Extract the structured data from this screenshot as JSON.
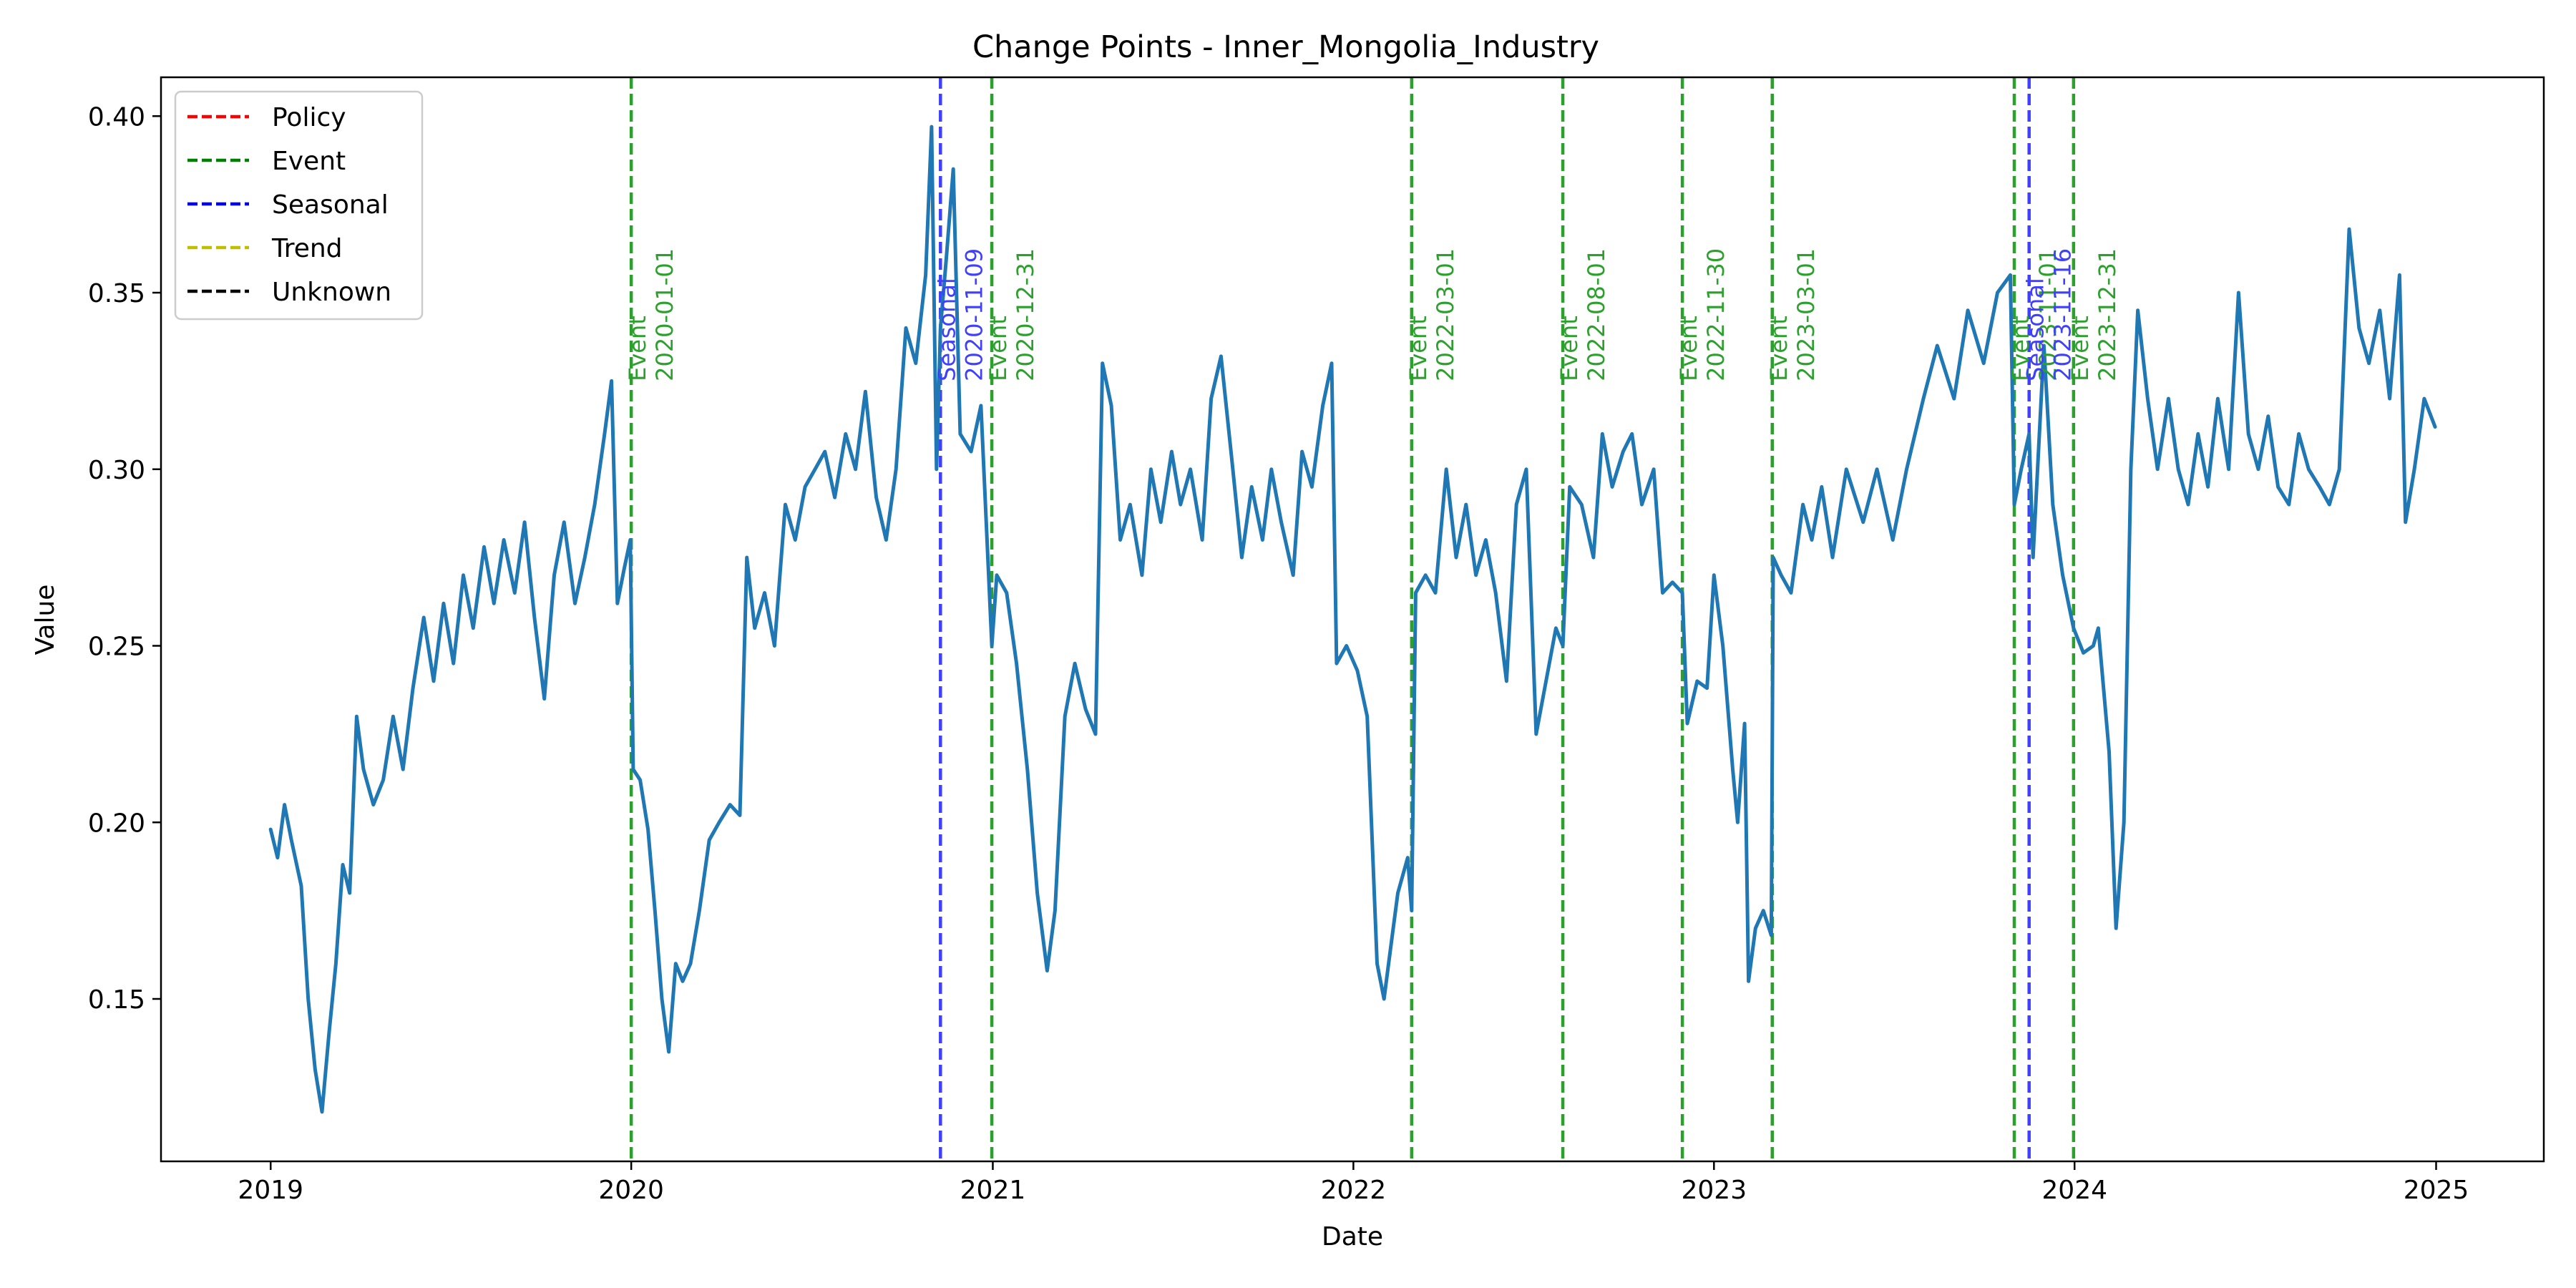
{
  "chart_data": {
    "type": "line",
    "title": "Change Points - Inner_Mongolia_Industry",
    "xlabel": "Date",
    "ylabel": "Value",
    "xlim": [
      "2018-09-12",
      "2025-04-20"
    ],
    "ylim": [
      0.104,
      0.411
    ],
    "x_ticks": [
      "2019",
      "2020",
      "2021",
      "2022",
      "2023",
      "2024",
      "2025"
    ],
    "y_ticks": [
      "0.15",
      "0.20",
      "0.25",
      "0.30",
      "0.35",
      "0.40"
    ],
    "grid": false,
    "legend": {
      "placement": "upper-left",
      "entries": [
        {
          "label": "Policy",
          "color": "#ff0000"
        },
        {
          "label": "Event",
          "color": "#008000"
        },
        {
          "label": "Seasonal",
          "color": "#0000ff"
        },
        {
          "label": "Trend",
          "color": "#bfbf00"
        },
        {
          "label": "Unknown",
          "color": "#000000"
        }
      ]
    },
    "series": [
      {
        "color": "#1f77b4",
        "points": [
          [
            "2019-01-01",
            0.198
          ],
          [
            "2019-01-08",
            0.19
          ],
          [
            "2019-01-15",
            0.205
          ],
          [
            "2019-01-22",
            0.195
          ],
          [
            "2019-02-01",
            0.182
          ],
          [
            "2019-02-08",
            0.15
          ],
          [
            "2019-02-15",
            0.13
          ],
          [
            "2019-02-22",
            0.118
          ],
          [
            "2019-03-01",
            0.14
          ],
          [
            "2019-03-08",
            0.16
          ],
          [
            "2019-03-15",
            0.188
          ],
          [
            "2019-03-22",
            0.18
          ],
          [
            "2019-03-29",
            0.23
          ],
          [
            "2019-04-05",
            0.215
          ],
          [
            "2019-04-15",
            0.205
          ],
          [
            "2019-04-25",
            0.212
          ],
          [
            "2019-05-05",
            0.23
          ],
          [
            "2019-05-15",
            0.215
          ],
          [
            "2019-05-25",
            0.238
          ],
          [
            "2019-06-05",
            0.258
          ],
          [
            "2019-06-15",
            0.24
          ],
          [
            "2019-06-25",
            0.262
          ],
          [
            "2019-07-05",
            0.245
          ],
          [
            "2019-07-15",
            0.27
          ],
          [
            "2019-07-25",
            0.255
          ],
          [
            "2019-08-05",
            0.278
          ],
          [
            "2019-08-15",
            0.262
          ],
          [
            "2019-08-25",
            0.28
          ],
          [
            "2019-09-05",
            0.265
          ],
          [
            "2019-09-15",
            0.285
          ],
          [
            "2019-09-25",
            0.258
          ],
          [
            "2019-10-05",
            0.235
          ],
          [
            "2019-10-15",
            0.27
          ],
          [
            "2019-10-25",
            0.285
          ],
          [
            "2019-11-05",
            0.262
          ],
          [
            "2019-11-15",
            0.275
          ],
          [
            "2019-11-25",
            0.29
          ],
          [
            "2019-12-05",
            0.31
          ],
          [
            "2019-12-12",
            0.325
          ],
          [
            "2019-12-18",
            0.262
          ],
          [
            "2019-12-25",
            0.272
          ],
          [
            "2019-12-31",
            0.28
          ],
          [
            "2020-01-03",
            0.215
          ],
          [
            "2020-01-10",
            0.212
          ],
          [
            "2020-01-18",
            0.198
          ],
          [
            "2020-01-25",
            0.175
          ],
          [
            "2020-02-01",
            0.15
          ],
          [
            "2020-02-08",
            0.135
          ],
          [
            "2020-02-15",
            0.16
          ],
          [
            "2020-02-22",
            0.155
          ],
          [
            "2020-03-01",
            0.16
          ],
          [
            "2020-03-10",
            0.175
          ],
          [
            "2020-03-20",
            0.195
          ],
          [
            "2020-03-30",
            0.2
          ],
          [
            "2020-04-10",
            0.205
          ],
          [
            "2020-04-20",
            0.202
          ],
          [
            "2020-04-27",
            0.275
          ],
          [
            "2020-05-05",
            0.255
          ],
          [
            "2020-05-15",
            0.265
          ],
          [
            "2020-05-25",
            0.25
          ],
          [
            "2020-06-05",
            0.29
          ],
          [
            "2020-06-15",
            0.28
          ],
          [
            "2020-06-25",
            0.295
          ],
          [
            "2020-07-05",
            0.3
          ],
          [
            "2020-07-15",
            0.305
          ],
          [
            "2020-07-25",
            0.292
          ],
          [
            "2020-08-05",
            0.31
          ],
          [
            "2020-08-15",
            0.3
          ],
          [
            "2020-08-25",
            0.322
          ],
          [
            "2020-09-05",
            0.292
          ],
          [
            "2020-09-15",
            0.28
          ],
          [
            "2020-09-25",
            0.3
          ],
          [
            "2020-10-05",
            0.34
          ],
          [
            "2020-10-15",
            0.33
          ],
          [
            "2020-10-25",
            0.355
          ],
          [
            "2020-10-31",
            0.397
          ],
          [
            "2020-11-05",
            0.3
          ],
          [
            "2020-11-09",
            0.34
          ],
          [
            "2020-11-15",
            0.36
          ],
          [
            "2020-11-22",
            0.385
          ],
          [
            "2020-11-29",
            0.31
          ],
          [
            "2020-12-10",
            0.305
          ],
          [
            "2020-12-20",
            0.318
          ],
          [
            "2020-12-31",
            0.25
          ],
          [
            "2021-01-05",
            0.27
          ],
          [
            "2021-01-15",
            0.265
          ],
          [
            "2021-01-25",
            0.245
          ],
          [
            "2021-02-05",
            0.215
          ],
          [
            "2021-02-15",
            0.18
          ],
          [
            "2021-02-25",
            0.158
          ],
          [
            "2021-03-05",
            0.175
          ],
          [
            "2021-03-15",
            0.23
          ],
          [
            "2021-03-25",
            0.245
          ],
          [
            "2021-04-05",
            0.232
          ],
          [
            "2021-04-15",
            0.225
          ],
          [
            "2021-04-22",
            0.33
          ],
          [
            "2021-05-01",
            0.318
          ],
          [
            "2021-05-10",
            0.28
          ],
          [
            "2021-05-20",
            0.29
          ],
          [
            "2021-06-01",
            0.27
          ],
          [
            "2021-06-10",
            0.3
          ],
          [
            "2021-06-20",
            0.285
          ],
          [
            "2021-07-01",
            0.305
          ],
          [
            "2021-07-10",
            0.29
          ],
          [
            "2021-07-20",
            0.3
          ],
          [
            "2021-08-01",
            0.28
          ],
          [
            "2021-08-10",
            0.32
          ],
          [
            "2021-08-20",
            0.332
          ],
          [
            "2021-09-01",
            0.3
          ],
          [
            "2021-09-10",
            0.275
          ],
          [
            "2021-09-20",
            0.295
          ],
          [
            "2021-10-01",
            0.28
          ],
          [
            "2021-10-10",
            0.3
          ],
          [
            "2021-10-20",
            0.285
          ],
          [
            "2021-11-01",
            0.27
          ],
          [
            "2021-11-10",
            0.305
          ],
          [
            "2021-11-20",
            0.295
          ],
          [
            "2021-12-01",
            0.318
          ],
          [
            "2021-12-10",
            0.33
          ],
          [
            "2021-12-15",
            0.245
          ],
          [
            "2021-12-25",
            0.25
          ],
          [
            "2022-01-05",
            0.243
          ],
          [
            "2022-01-15",
            0.23
          ],
          [
            "2022-01-25",
            0.16
          ],
          [
            "2022-02-01",
            0.15
          ],
          [
            "2022-02-08",
            0.165
          ],
          [
            "2022-02-15",
            0.18
          ],
          [
            "2022-02-25",
            0.19
          ],
          [
            "2022-03-01",
            0.175
          ],
          [
            "2022-03-05",
            0.265
          ],
          [
            "2022-03-15",
            0.27
          ],
          [
            "2022-03-25",
            0.265
          ],
          [
            "2022-04-05",
            0.3
          ],
          [
            "2022-04-15",
            0.275
          ],
          [
            "2022-04-25",
            0.29
          ],
          [
            "2022-05-05",
            0.27
          ],
          [
            "2022-05-15",
            0.28
          ],
          [
            "2022-05-25",
            0.265
          ],
          [
            "2022-06-05",
            0.24
          ],
          [
            "2022-06-15",
            0.29
          ],
          [
            "2022-06-25",
            0.3
          ],
          [
            "2022-07-05",
            0.225
          ],
          [
            "2022-07-15",
            0.24
          ],
          [
            "2022-07-25",
            0.255
          ],
          [
            "2022-08-01",
            0.25
          ],
          [
            "2022-08-08",
            0.295
          ],
          [
            "2022-08-20",
            0.29
          ],
          [
            "2022-09-01",
            0.275
          ],
          [
            "2022-09-10",
            0.31
          ],
          [
            "2022-09-20",
            0.295
          ],
          [
            "2022-10-01",
            0.305
          ],
          [
            "2022-10-10",
            0.31
          ],
          [
            "2022-10-20",
            0.29
          ],
          [
            "2022-11-01",
            0.3
          ],
          [
            "2022-11-10",
            0.265
          ],
          [
            "2022-11-20",
            0.268
          ],
          [
            "2022-11-30",
            0.265
          ],
          [
            "2022-12-05",
            0.228
          ],
          [
            "2022-12-15",
            0.24
          ],
          [
            "2022-12-25",
            0.238
          ],
          [
            "2023-01-01",
            0.27
          ],
          [
            "2023-01-10",
            0.25
          ],
          [
            "2023-01-20",
            0.215
          ],
          [
            "2023-01-25",
            0.2
          ],
          [
            "2023-02-01",
            0.228
          ],
          [
            "2023-02-05",
            0.155
          ],
          [
            "2023-02-12",
            0.17
          ],
          [
            "2023-02-20",
            0.175
          ],
          [
            "2023-02-28",
            0.168
          ],
          [
            "2023-03-02",
            0.275
          ],
          [
            "2023-03-10",
            0.27
          ],
          [
            "2023-03-20",
            0.265
          ],
          [
            "2023-04-01",
            0.29
          ],
          [
            "2023-04-10",
            0.28
          ],
          [
            "2023-04-20",
            0.295
          ],
          [
            "2023-05-01",
            0.275
          ],
          [
            "2023-05-15",
            0.3
          ],
          [
            "2023-06-01",
            0.285
          ],
          [
            "2023-06-15",
            0.3
          ],
          [
            "2023-07-01",
            0.28
          ],
          [
            "2023-07-15",
            0.3
          ],
          [
            "2023-08-01",
            0.32
          ],
          [
            "2023-08-15",
            0.335
          ],
          [
            "2023-09-01",
            0.32
          ],
          [
            "2023-09-15",
            0.345
          ],
          [
            "2023-10-01",
            0.33
          ],
          [
            "2023-10-15",
            0.35
          ],
          [
            "2023-10-28",
            0.355
          ],
          [
            "2023-11-01",
            0.29
          ],
          [
            "2023-11-08",
            0.3
          ],
          [
            "2023-11-16",
            0.31
          ],
          [
            "2023-11-20",
            0.275
          ],
          [
            "2023-12-01",
            0.335
          ],
          [
            "2023-12-10",
            0.29
          ],
          [
            "2023-12-20",
            0.27
          ],
          [
            "2023-12-31",
            0.255
          ],
          [
            "2024-01-10",
            0.248
          ],
          [
            "2024-01-20",
            0.25
          ],
          [
            "2024-01-25",
            0.255
          ],
          [
            "2024-02-05",
            0.22
          ],
          [
            "2024-02-12",
            0.17
          ],
          [
            "2024-02-20",
            0.2
          ],
          [
            "2024-02-27",
            0.3
          ],
          [
            "2024-03-05",
            0.345
          ],
          [
            "2024-03-15",
            0.32
          ],
          [
            "2024-03-25",
            0.3
          ],
          [
            "2024-04-05",
            0.32
          ],
          [
            "2024-04-15",
            0.3
          ],
          [
            "2024-04-25",
            0.29
          ],
          [
            "2024-05-05",
            0.31
          ],
          [
            "2024-05-15",
            0.295
          ],
          [
            "2024-05-25",
            0.32
          ],
          [
            "2024-06-05",
            0.3
          ],
          [
            "2024-06-15",
            0.35
          ],
          [
            "2024-06-25",
            0.31
          ],
          [
            "2024-07-05",
            0.3
          ],
          [
            "2024-07-15",
            0.315
          ],
          [
            "2024-07-25",
            0.295
          ],
          [
            "2024-08-05",
            0.29
          ],
          [
            "2024-08-15",
            0.31
          ],
          [
            "2024-08-25",
            0.3
          ],
          [
            "2024-09-05",
            0.295
          ],
          [
            "2024-09-15",
            0.29
          ],
          [
            "2024-09-25",
            0.3
          ],
          [
            "2024-10-05",
            0.368
          ],
          [
            "2024-10-15",
            0.34
          ],
          [
            "2024-10-25",
            0.33
          ],
          [
            "2024-11-05",
            0.345
          ],
          [
            "2024-11-15",
            0.32
          ],
          [
            "2024-11-25",
            0.355
          ],
          [
            "2024-12-01",
            0.285
          ],
          [
            "2024-12-10",
            0.3
          ],
          [
            "2024-12-20",
            0.32
          ],
          [
            "2024-12-31",
            0.312
          ]
        ]
      }
    ],
    "change_points": [
      {
        "date": "2020-01-01",
        "category": "Event",
        "label": "Event",
        "date_label": "2020-01-01",
        "color": "#2ca02c"
      },
      {
        "date": "2020-11-09",
        "category": "Seasonal",
        "label": "Seasonal",
        "date_label": "2020-11-09",
        "color": "#3f3fff"
      },
      {
        "date": "2020-12-31",
        "category": "Event",
        "label": "Event",
        "date_label": "2020-12-31",
        "color": "#2ca02c"
      },
      {
        "date": "2022-03-01",
        "category": "Event",
        "label": "Event",
        "date_label": "2022-03-01",
        "color": "#2ca02c"
      },
      {
        "date": "2022-08-01",
        "category": "Event",
        "label": "Event",
        "date_label": "2022-08-01",
        "color": "#2ca02c"
      },
      {
        "date": "2022-11-30",
        "category": "Event",
        "label": "Event",
        "date_label": "2022-11-30",
        "color": "#2ca02c"
      },
      {
        "date": "2023-03-01",
        "category": "Event",
        "label": "Event",
        "date_label": "2023-03-01",
        "color": "#2ca02c"
      },
      {
        "date": "2023-11-01",
        "category": "Event",
        "label": "Event",
        "date_label": "2023-11-01",
        "color": "#2ca02c"
      },
      {
        "date": "2023-11-16",
        "category": "Seasonal",
        "label": "Seasonal",
        "date_label": "2023-11-16",
        "color": "#3f3fff"
      },
      {
        "date": "2023-12-31",
        "category": "Event",
        "label": "Event",
        "date_label": "2023-12-31",
        "color": "#2ca02c"
      }
    ]
  }
}
